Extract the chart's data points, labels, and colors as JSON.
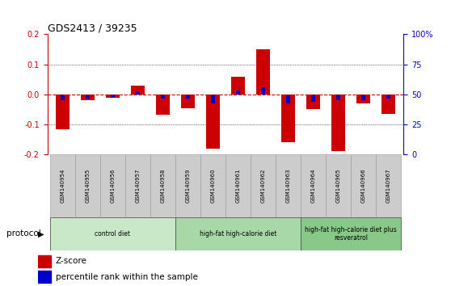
{
  "title": "GDS2413 / 39235",
  "samples": [
    "GSM140954",
    "GSM140955",
    "GSM140956",
    "GSM140957",
    "GSM140958",
    "GSM140959",
    "GSM140960",
    "GSM140961",
    "GSM140962",
    "GSM140963",
    "GSM140964",
    "GSM140965",
    "GSM140966",
    "GSM140967"
  ],
  "z_scores": [
    -0.115,
    -0.018,
    -0.012,
    0.03,
    -0.068,
    -0.045,
    -0.18,
    0.06,
    0.15,
    -0.16,
    -0.048,
    -0.19,
    -0.03,
    -0.065
  ],
  "pct_ranks": [
    -0.02,
    -0.014,
    -0.01,
    0.01,
    -0.015,
    -0.015,
    -0.03,
    0.012,
    0.025,
    -0.03,
    -0.025,
    -0.02,
    -0.018,
    -0.015
  ],
  "ylim": [
    -0.2,
    0.2
  ],
  "yticks_left": [
    -0.2,
    -0.1,
    0.0,
    0.1,
    0.2
  ],
  "yticks_right": [
    0,
    25,
    50,
    75,
    100
  ],
  "yticks_right_vals": [
    -0.2,
    -0.1,
    0.0,
    0.1,
    0.2
  ],
  "groups": [
    {
      "label": "control diet",
      "start": 0,
      "end": 5,
      "color": "#c8e8c8"
    },
    {
      "label": "high-fat high-calorie diet",
      "start": 5,
      "end": 10,
      "color": "#a8d8a8"
    },
    {
      "label": "high-fat high-calorie diet plus\nresveratrol",
      "start": 10,
      "end": 14,
      "color": "#88c888"
    }
  ],
  "bar_color_z": "#cc0000",
  "bar_color_p": "#0000cc",
  "bar_width": 0.55,
  "left_axis_color": "#cc0000",
  "right_axis_color": "#0000cc",
  "bg_color": "#ffffff",
  "grid_color": "#000000",
  "zero_line_color": "#cc0000",
  "protocol_label": "protocol",
  "legend_z": "Z-score",
  "legend_p": "percentile rank within the sample",
  "tick_bg_color": "#cccccc"
}
